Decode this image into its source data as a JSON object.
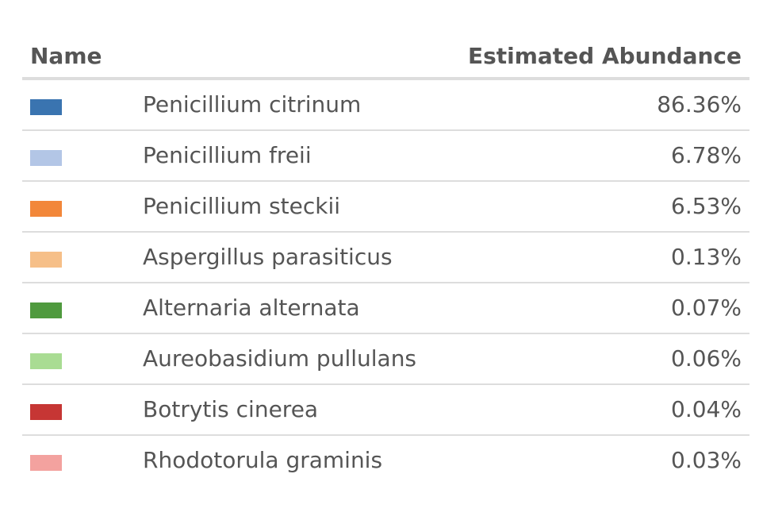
{
  "table": {
    "headers": {
      "name": "Name",
      "abundance": "Estimated Abundance"
    },
    "rows": [
      {
        "name": "Penicillium citrinum",
        "value": "86.36%",
        "color": "#3a74b0"
      },
      {
        "name": "Penicillium freii",
        "value": "6.78%",
        "color": "#b3c6e6"
      },
      {
        "name": "Penicillium steckii",
        "value": "6.53%",
        "color": "#f2873a"
      },
      {
        "name": "Aspergillus parasiticus",
        "value": "0.13%",
        "color": "#f6bf88"
      },
      {
        "name": "Alternaria alternata",
        "value": "0.07%",
        "color": "#4f9a3e"
      },
      {
        "name": "Aureobasidium pullulans",
        "value": "0.06%",
        "color": "#a9dc93"
      },
      {
        "name": "Botrytis cinerea",
        "value": "0.04%",
        "color": "#c63634"
      },
      {
        "name": "Rhodotorula graminis",
        "value": "0.03%",
        "color": "#f3a29f"
      }
    ]
  }
}
